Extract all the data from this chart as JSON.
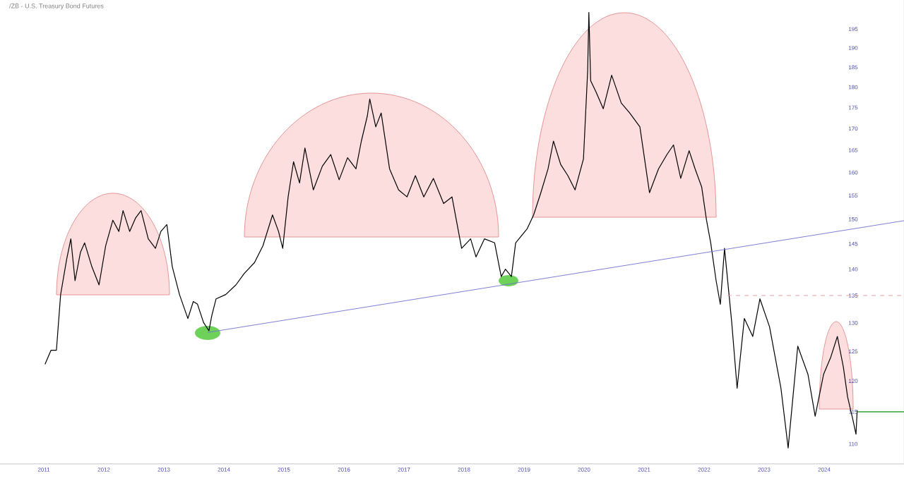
{
  "chart_data": {
    "type": "line",
    "title": "/ZB - U.S. Treasury Bond Futures",
    "log": true,
    "xlim": [
      2010.27,
      2025.33
    ],
    "ylim": [
      107,
      203
    ],
    "xticks": [
      2011,
      2012,
      2013,
      2014,
      2015,
      2016,
      2017,
      2018,
      2019,
      2020,
      2021,
      2022,
      2023,
      2024
    ],
    "yticks": [
      110,
      115,
      120,
      125,
      130,
      135,
      140,
      145,
      150,
      155,
      160,
      165,
      170,
      175,
      180,
      185,
      190,
      195
    ],
    "series": [
      {
        "color": "#000000",
        "x": [
          2011.02,
          2011.12,
          2011.21,
          2011.28,
          2011.38,
          2011.45,
          2011.52,
          2011.61,
          2011.68,
          2011.8,
          2011.92,
          2012.03,
          2012.15,
          2012.25,
          2012.32,
          2012.43,
          2012.53,
          2012.62,
          2012.74,
          2012.86,
          2012.95,
          2013.05,
          2013.14,
          2013.26,
          2013.4,
          2013.49,
          2013.56,
          2013.66,
          2013.75,
          2013.8,
          2013.87,
          2014.03,
          2014.2,
          2014.34,
          2014.51,
          2014.65,
          2014.81,
          2014.91,
          2014.98,
          2015.07,
          2015.16,
          2015.26,
          2015.35,
          2015.49,
          2015.64,
          2015.78,
          2015.92,
          2016.06,
          2016.2,
          2016.29,
          2016.39,
          2016.43,
          2016.53,
          2016.62,
          2016.76,
          2016.91,
          2017.05,
          2017.19,
          2017.33,
          2017.49,
          2017.66,
          2017.8,
          2017.96,
          2018.11,
          2018.2,
          2018.34,
          2018.51,
          2018.62,
          2018.69,
          2018.79,
          2018.86,
          2019.05,
          2019.16,
          2019.28,
          2019.4,
          2019.49,
          2019.61,
          2019.73,
          2019.85,
          2019.99,
          2020.06,
          2020.08,
          2020.11,
          2020.2,
          2020.32,
          2020.46,
          2020.62,
          2020.76,
          2020.93,
          2021.09,
          2021.24,
          2021.38,
          2021.49,
          2021.61,
          2021.75,
          2021.85,
          2021.96,
          2022.04,
          2022.11,
          2022.2,
          2022.27,
          2022.34,
          2022.46,
          2022.55,
          2022.67,
          2022.81,
          2022.93,
          2023.09,
          2023.28,
          2023.4,
          2023.56,
          2023.73,
          2023.85,
          2023.99,
          2024.11,
          2024.22,
          2024.32,
          2024.39,
          2024.48,
          2024.53,
          2024.55
        ],
        "values": [
          122.8,
          125.2,
          125.2,
          135.2,
          141.9,
          146.0,
          137.8,
          143.3,
          145.2,
          140.5,
          137.0,
          144.6,
          149.8,
          147.5,
          151.8,
          147.5,
          150.3,
          151.8,
          146.0,
          144.1,
          147.5,
          148.9,
          140.5,
          135.2,
          130.8,
          133.9,
          133.4,
          130.1,
          128.6,
          131.4,
          134.4,
          135.2,
          137.0,
          139.2,
          141.3,
          144.6,
          150.9,
          147.5,
          144.1,
          154.7,
          162.4,
          157.7,
          165.5,
          156.2,
          161.4,
          164.0,
          158.4,
          163.3,
          160.8,
          167.1,
          173.0,
          177.1,
          170.4,
          173.7,
          160.8,
          156.2,
          154.7,
          159.3,
          154.7,
          158.7,
          153.3,
          154.7,
          144.1,
          146.0,
          142.4,
          146.0,
          145.2,
          138.6,
          140.0,
          138.6,
          145.2,
          148.0,
          150.9,
          155.6,
          160.8,
          167.1,
          161.8,
          159.3,
          156.2,
          163.0,
          184.1,
          199.6,
          181.6,
          178.8,
          174.7,
          183.0,
          176.1,
          173.7,
          170.4,
          155.6,
          160.8,
          164.0,
          166.2,
          158.7,
          164.9,
          160.8,
          156.8,
          149.8,
          145.2,
          137.8,
          133.4,
          144.1,
          130.1,
          118.8,
          130.8,
          127.6,
          134.4,
          129.3,
          118.8,
          109.4,
          125.9,
          121.1,
          114.3,
          121.1,
          124.0,
          127.6,
          122.3,
          117.4,
          113.7,
          111.5,
          115.2
        ]
      },
      {
        "color": "#7070d0",
        "x": [
          2013.73,
          2025.33
        ],
        "values": [
          128.3,
          149.7
        ]
      },
      {
        "color": "#e8a0a0",
        "line_style": "dashed",
        "x": [
          2022.39,
          2025.33
        ],
        "values": [
          135,
          135
        ]
      },
      {
        "color": "#4caf50",
        "x": [
          2024.55,
          2025.33
        ],
        "values": [
          115,
          115
        ]
      }
    ]
  }
}
